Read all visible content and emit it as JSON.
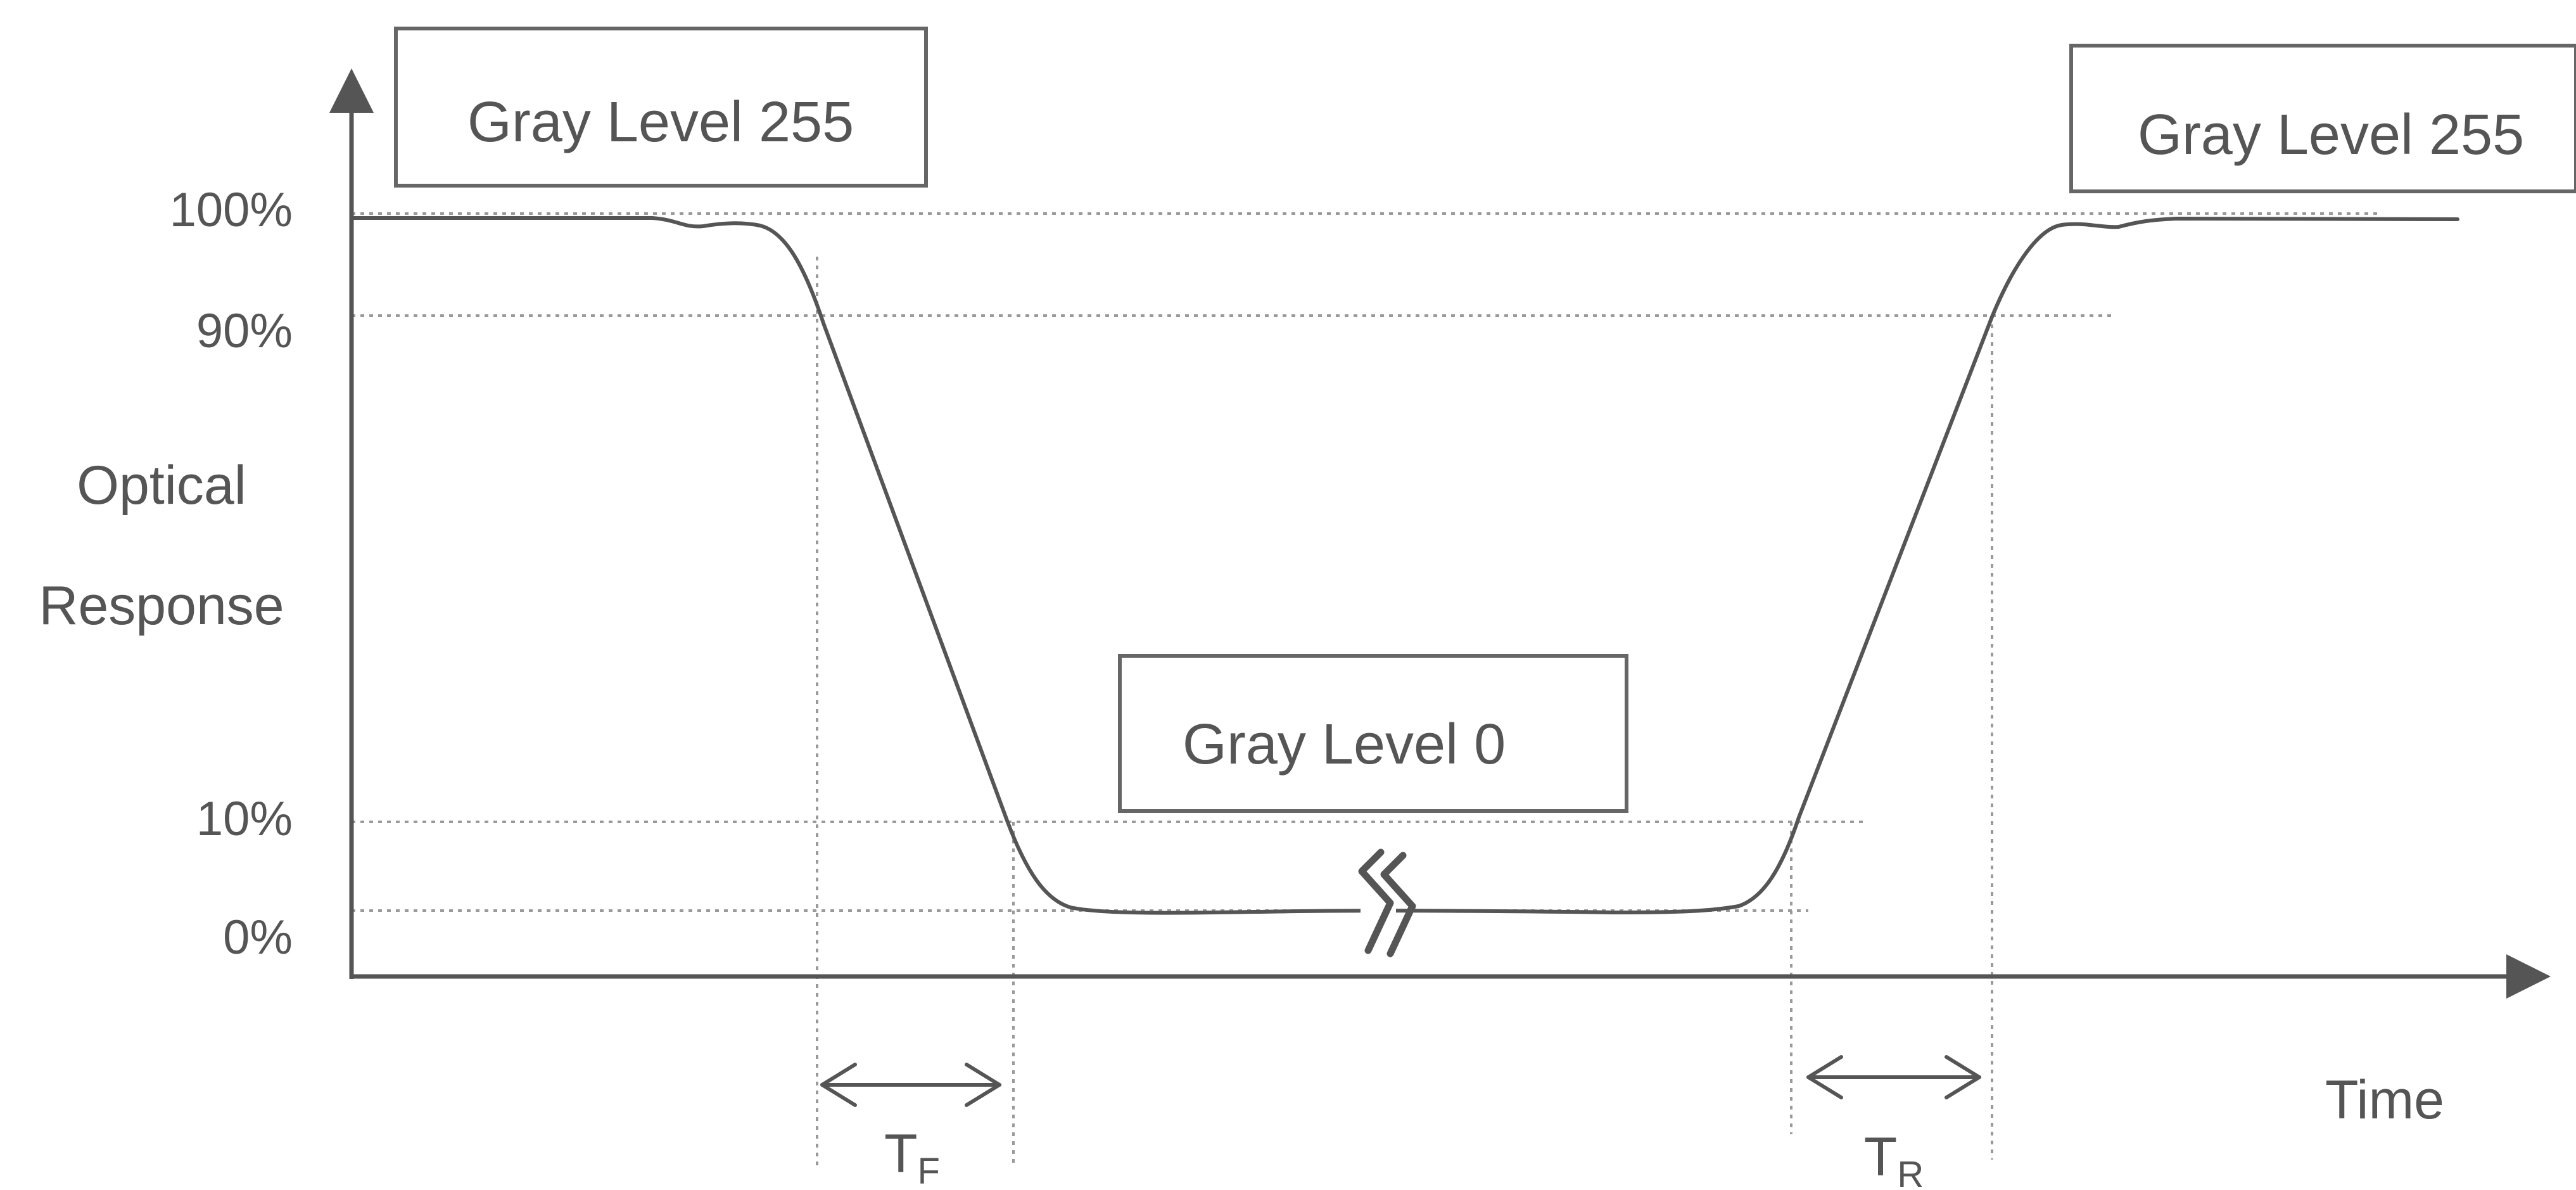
{
  "diagram": {
    "y_axis": {
      "label_line1": "Optical",
      "label_line2": "Response",
      "ticks": [
        "100%",
        "90%",
        "10%",
        "0%"
      ]
    },
    "x_axis": {
      "label": "Time"
    },
    "levels": {
      "left": "Gray Level 255",
      "middle": "Gray Level 0",
      "right": "Gray Level 255"
    },
    "intervals": {
      "fall": {
        "main": "T",
        "sub": "F"
      },
      "rise": {
        "main": "T",
        "sub": "R"
      }
    },
    "colors": {
      "curve": "#555555",
      "axis": "#555555",
      "gridline": "#9a9a9a",
      "box_border": "#666666",
      "text": "#555555"
    }
  }
}
